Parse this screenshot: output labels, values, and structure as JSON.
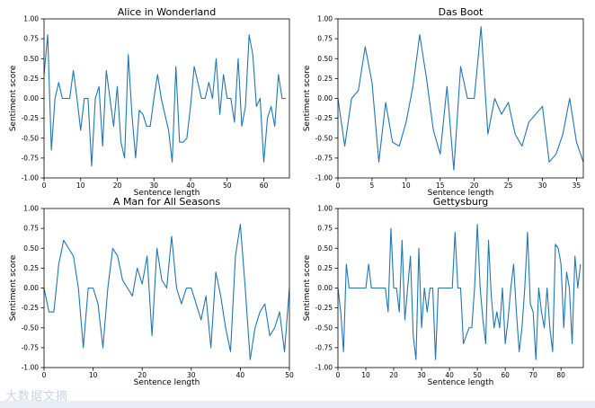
{
  "chart_data": [
    {
      "type": "line",
      "title": "Alice in Wonderland",
      "xlabel": "Sentence length",
      "ylabel": "Sentiment score",
      "xlim": [
        0,
        67
      ],
      "ylim": [
        -1.0,
        1.0
      ],
      "xticks": [
        0,
        10,
        20,
        30,
        40,
        50,
        60
      ],
      "yticks": [
        -1.0,
        -0.75,
        -0.5,
        -0.25,
        0.0,
        0.25,
        0.5,
        0.75,
        1.0
      ],
      "color": "#1f77b4",
      "y": [
        0.3,
        0.8,
        -0.65,
        0.0,
        0.2,
        0.0,
        0.0,
        0.0,
        0.35,
        0.0,
        -0.4,
        0.0,
        0.0,
        -0.85,
        0.0,
        0.15,
        -0.6,
        0.35,
        0.0,
        -0.35,
        0.15,
        -0.55,
        -0.75,
        0.55,
        -0.2,
        -0.75,
        -0.15,
        -0.2,
        -0.35,
        -0.35,
        0.0,
        0.3,
        0.0,
        -0.2,
        -0.4,
        -0.8,
        0.4,
        -0.55,
        -0.55,
        -0.5,
        -0.1,
        0.4,
        0.2,
        0.0,
        0.0,
        0.2,
        0.0,
        0.5,
        -0.2,
        0.3,
        0.0,
        0.0,
        -0.3,
        0.5,
        -0.35,
        -0.1,
        0.8,
        0.55,
        -0.1,
        0.0,
        -0.8,
        -0.25,
        -0.1,
        -0.35,
        0.3,
        0.0,
        0.0
      ]
    },
    {
      "type": "line",
      "title": "Das Boot",
      "xlabel": "Sentence length",
      "ylabel": "Sentiment score",
      "xlim": [
        0,
        36
      ],
      "ylim": [
        -1.0,
        1.0
      ],
      "xticks": [
        0,
        5,
        10,
        15,
        20,
        25,
        30,
        35
      ],
      "yticks": [
        -1.0,
        -0.75,
        -0.5,
        -0.25,
        0.0,
        0.25,
        0.5,
        0.75,
        1.0
      ],
      "color": "#1f77b4",
      "y": [
        0.0,
        -0.6,
        0.0,
        0.1,
        0.65,
        0.2,
        -0.8,
        -0.05,
        -0.55,
        -0.6,
        -0.3,
        0.15,
        0.8,
        0.25,
        -0.4,
        -0.7,
        0.15,
        -0.9,
        0.4,
        0.0,
        0.0,
        0.9,
        -0.45,
        0.0,
        -0.2,
        -0.05,
        -0.45,
        -0.6,
        -0.3,
        -0.2,
        -0.1,
        -0.8,
        -0.7,
        -0.45,
        0.0,
        -0.55,
        -0.8
      ]
    },
    {
      "type": "line",
      "title": "A Man for All Seasons",
      "xlabel": "Sentence length",
      "ylabel": "Sentiment score",
      "xlim": [
        0,
        50
      ],
      "ylim": [
        -1.0,
        1.0
      ],
      "xticks": [
        0,
        10,
        20,
        30,
        40,
        50
      ],
      "yticks": [
        -1.0,
        -0.75,
        -0.5,
        -0.25,
        0.0,
        0.25,
        0.5,
        0.75,
        1.0
      ],
      "color": "#1f77b4",
      "y": [
        0.0,
        -0.3,
        -0.3,
        0.3,
        0.6,
        0.5,
        0.4,
        0.0,
        -0.75,
        0.0,
        0.0,
        -0.2,
        -0.75,
        0.0,
        0.5,
        0.4,
        0.1,
        0.0,
        -0.1,
        0.25,
        0.05,
        0.4,
        -0.6,
        0.5,
        0.1,
        0.0,
        0.65,
        0.0,
        -0.2,
        0.0,
        0.0,
        -0.2,
        -0.4,
        -0.1,
        -0.75,
        0.2,
        -0.1,
        -0.5,
        -0.8,
        0.4,
        0.8,
        0.0,
        -0.9,
        -0.5,
        -0.3,
        -0.2,
        -0.6,
        -0.5,
        -0.3,
        -0.8,
        0.0
      ]
    },
    {
      "type": "line",
      "title": "Gettysburg",
      "xlabel": "Sentence length",
      "ylabel": "Sentiment score",
      "xlim": [
        0,
        88
      ],
      "ylim": [
        -1.0,
        1.0
      ],
      "xticks": [
        0,
        10,
        20,
        30,
        40,
        50,
        60,
        70,
        80
      ],
      "yticks": [
        -1.0,
        -0.75,
        -0.5,
        -0.25,
        0.0,
        0.25,
        0.5,
        0.75,
        1.0
      ],
      "color": "#1f77b4",
      "y": [
        0.0,
        -0.3,
        -0.8,
        0.3,
        0.0,
        0.0,
        0.0,
        0.0,
        0.0,
        0.0,
        0.0,
        0.3,
        0.0,
        0.0,
        0.0,
        0.0,
        0.0,
        0.0,
        -0.3,
        0.75,
        0.0,
        0.0,
        -0.3,
        0.6,
        -0.4,
        0.0,
        0.4,
        -0.6,
        -0.9,
        0.5,
        -0.5,
        0.0,
        -0.3,
        0.0,
        0.0,
        -0.9,
        0.0,
        0.0,
        0.0,
        0.0,
        0.0,
        0.0,
        0.7,
        0.0,
        0.0,
        -0.7,
        -0.6,
        -0.5,
        -0.5,
        0.0,
        0.8,
        0.0,
        -0.4,
        -0.7,
        0.6,
        -0.1,
        -0.5,
        -0.3,
        -0.5,
        0.0,
        -0.7,
        -0.4,
        0.0,
        0.3,
        -0.3,
        -0.8,
        -0.5,
        0.0,
        0.7,
        -0.2,
        -0.3,
        -0.9,
        0.0,
        -0.3,
        -0.5,
        0.0,
        -0.5,
        -0.8,
        0.55,
        0.5,
        0.3,
        -0.5,
        0.2,
        0.0,
        -0.7,
        0.4,
        0.0,
        0.3
      ]
    }
  ],
  "watermark": "大数据文摘"
}
